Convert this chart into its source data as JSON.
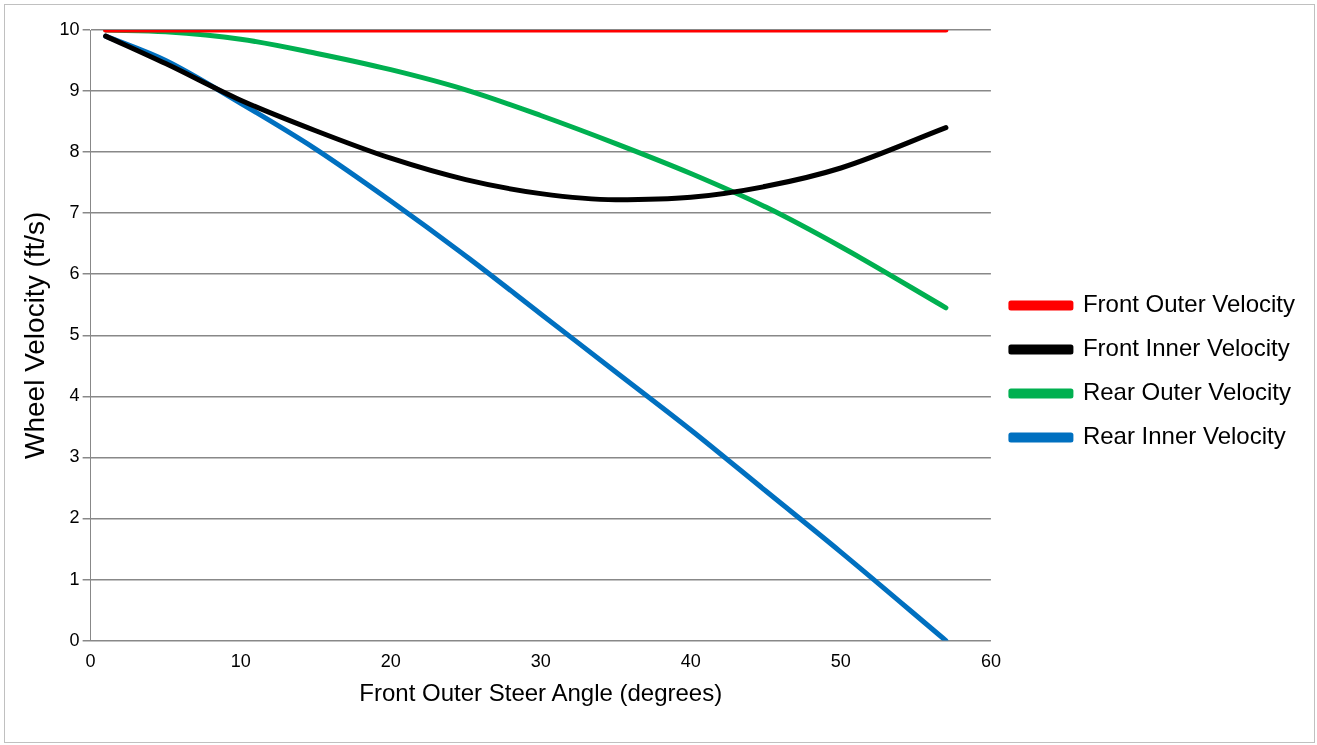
{
  "chart_data": {
    "type": "line",
    "xlabel": "Front Outer Steer Angle (degrees)",
    "ylabel": "Wheel Velocity (ft/s)",
    "x": [
      1,
      5,
      10,
      15,
      20,
      25,
      30,
      35,
      40,
      45,
      50,
      57
    ],
    "series": [
      {
        "name": "Front Outer Velocity",
        "color": "#ff0000",
        "values": [
          10,
          10,
          10,
          10,
          10,
          10,
          10,
          10,
          10,
          10,
          10,
          10
        ]
      },
      {
        "name": "Front Inner Velocity",
        "color": "#000000",
        "values": [
          9.9,
          9.45,
          8.85,
          8.35,
          7.9,
          7.55,
          7.32,
          7.22,
          7.26,
          7.44,
          7.74,
          8.4
        ]
      },
      {
        "name": "Rear Outer Velocity",
        "color": "#00b050",
        "values": [
          10,
          9.97,
          9.85,
          9.62,
          9.35,
          9.02,
          8.6,
          8.14,
          7.65,
          7.1,
          6.45,
          5.45
        ]
      },
      {
        "name": "Rear Inner Velocity",
        "color": "#0070c0",
        "values": [
          9.9,
          9.5,
          8.8,
          8.05,
          7.2,
          6.3,
          5.35,
          4.4,
          3.45,
          2.45,
          1.45,
          0
        ]
      }
    ],
    "xlim": [
      0,
      60
    ],
    "xticks": [
      0,
      10,
      20,
      30,
      40,
      50,
      60
    ],
    "ylim": [
      0,
      10
    ],
    "yticks": [
      0,
      1,
      2,
      3,
      4,
      5,
      6,
      7,
      8,
      9,
      10
    ],
    "grid": "y",
    "legend": "right",
    "marker": "none",
    "line_style": "solid"
  }
}
